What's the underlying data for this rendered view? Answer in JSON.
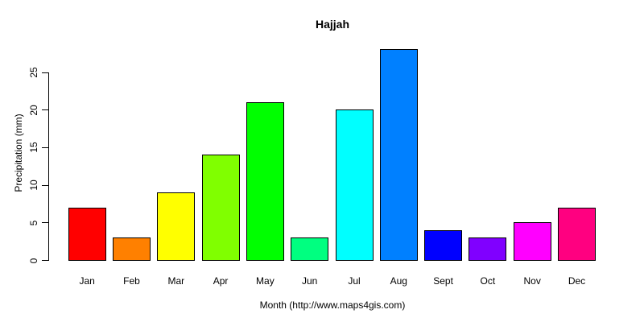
{
  "chart_data": {
    "type": "bar",
    "title": "Hajjah",
    "xlabel": "Month (http://www.maps4gis.com)",
    "ylabel": "Precipitation (mm)",
    "categories": [
      "Jan",
      "Feb",
      "Mar",
      "Apr",
      "May",
      "Jun",
      "Jul",
      "Aug",
      "Sept",
      "Oct",
      "Nov",
      "Dec"
    ],
    "values": [
      7,
      3,
      9,
      14,
      21,
      3,
      20,
      28,
      4,
      3,
      5,
      7
    ],
    "bar_colors": [
      "#FF0000",
      "#FF8000",
      "#FFFF00",
      "#80FF00",
      "#00FF00",
      "#00FF80",
      "#00FFFF",
      "#0080FF",
      "#0000FF",
      "#8000FF",
      "#FF00FF",
      "#FF0080"
    ],
    "bar_border_color": "#000000",
    "yticks": [
      0,
      5,
      10,
      15,
      20,
      25
    ],
    "ylim": [
      0,
      28
    ],
    "grid": false,
    "legend": "none",
    "background": "#FFFFFF",
    "axis_color": "#000000"
  }
}
